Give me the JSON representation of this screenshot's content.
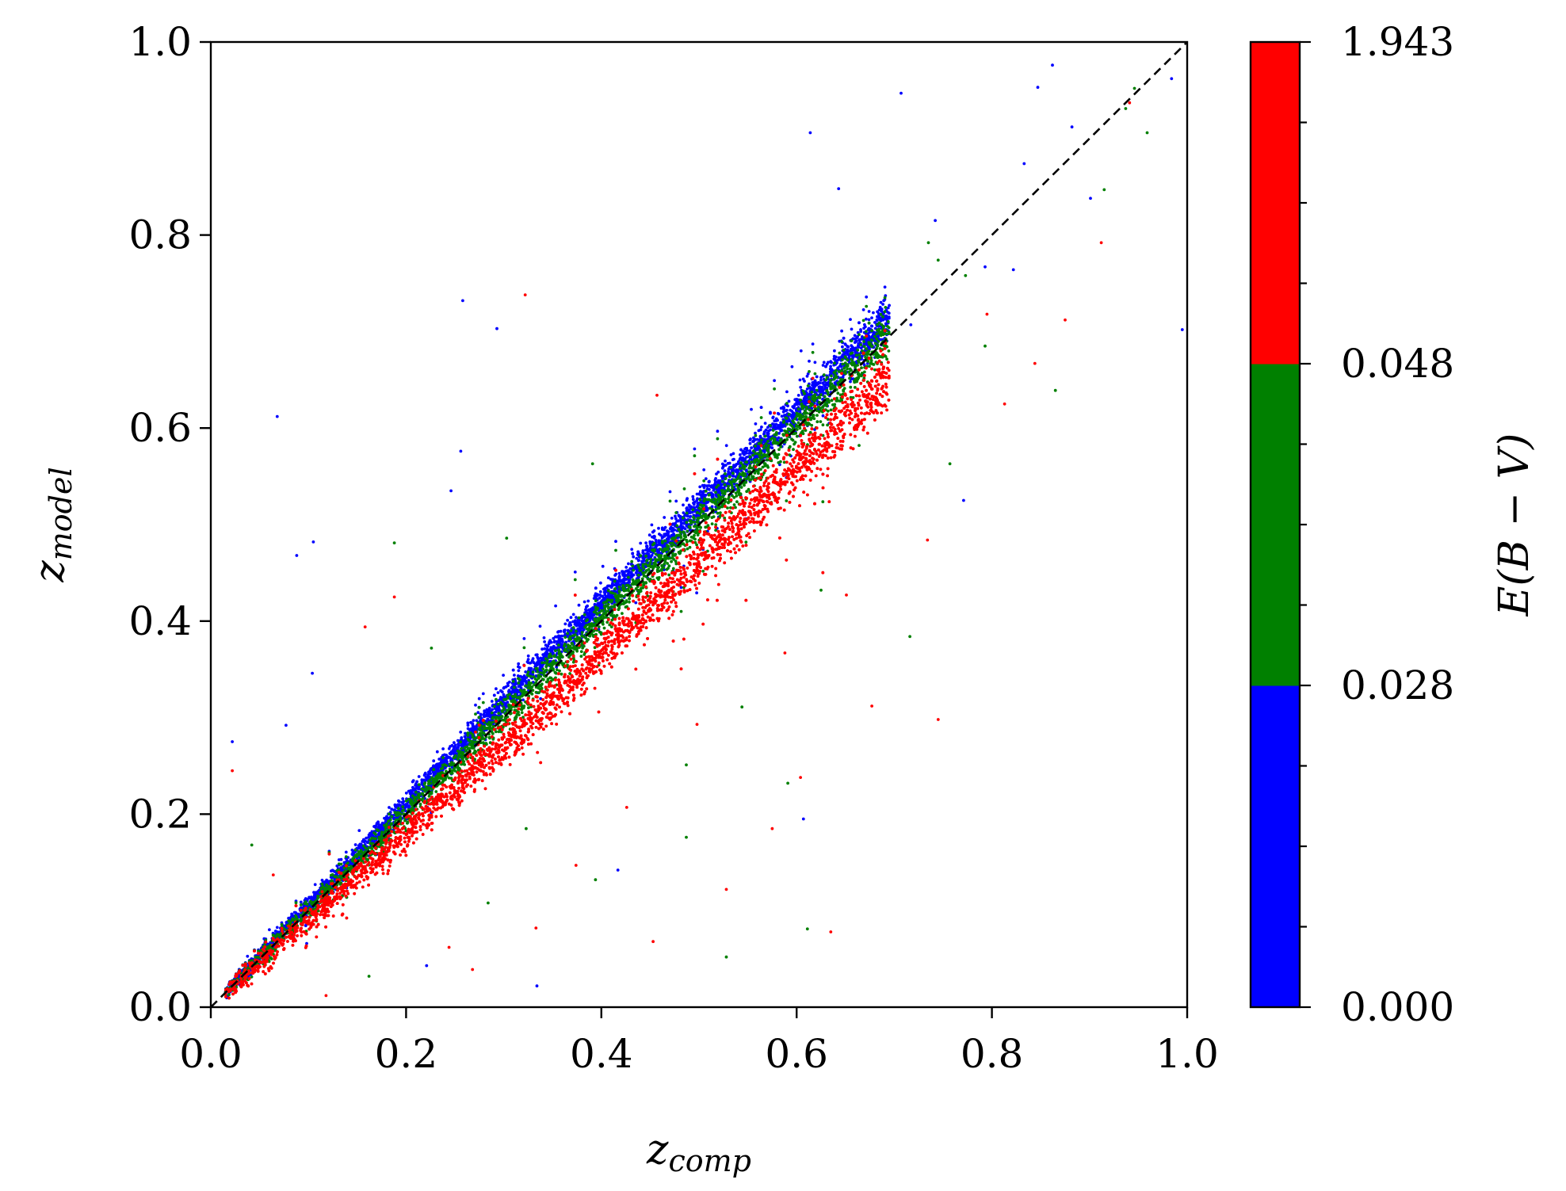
{
  "chart_data": {
    "type": "scatter",
    "xlabel_main": "z",
    "xlabel_sub": "comp",
    "ylabel_main": "z",
    "ylabel_sub": "model",
    "xlim": [
      0.0,
      1.0
    ],
    "ylim": [
      0.0,
      1.0
    ],
    "x_ticks": [
      "0.0",
      "0.2",
      "0.4",
      "0.6",
      "0.8",
      "1.0"
    ],
    "y_ticks": [
      "0.0",
      "0.2",
      "0.4",
      "0.6",
      "0.8",
      "1.0"
    ],
    "grid": false,
    "reference_line": {
      "style": "dashed",
      "color": "#000000",
      "from": [
        0.0,
        0.0
      ],
      "to": [
        1.0,
        1.0
      ]
    },
    "colorbar": {
      "label": "E(B − V)",
      "tick_labels": [
        "0.000",
        "0.028",
        "0.048",
        "1.943"
      ],
      "bins": [
        {
          "from": "0.000",
          "to": "0.028",
          "color": "#0000ff"
        },
        {
          "from": "0.028",
          "to": "0.048",
          "color": "#008000"
        },
        {
          "from": "0.048",
          "to": "1.943",
          "color": "#ff0000"
        }
      ]
    },
    "series": [
      {
        "color": "#0000ff",
        "bin": "0.000 - 0.028",
        "trend": {
          "slope": 1.0,
          "intercept": 0.018,
          "scatter": 0.022
        },
        "points": [
          [
            0.068,
            0.612
          ],
          [
            0.088,
            0.468
          ],
          [
            0.105,
            0.482
          ],
          [
            0.258,
            0.732
          ],
          [
            0.293,
            0.703
          ],
          [
            0.614,
            0.906
          ],
          [
            0.707,
            0.947
          ],
          [
            0.643,
            0.848
          ],
          [
            0.995,
            0.702
          ],
          [
            0.984,
            0.962
          ],
          [
            0.862,
            0.976
          ],
          [
            0.847,
            0.953
          ],
          [
            0.882,
            0.912
          ],
          [
            0.771,
            0.525
          ],
          [
            0.246,
            0.535
          ],
          [
            0.256,
            0.576
          ],
          [
            0.104,
            0.346
          ],
          [
            0.022,
            0.275
          ],
          [
            0.077,
            0.292
          ],
          [
            0.793,
            0.767
          ],
          [
            0.742,
            0.815
          ],
          [
            0.822,
            0.764
          ],
          [
            0.901,
            0.838
          ],
          [
            0.833,
            0.874
          ],
          [
            0.717,
            0.707
          ],
          [
            0.607,
            0.195
          ],
          [
            0.417,
            0.142
          ],
          [
            0.221,
            0.043
          ],
          [
            0.334,
            0.022
          ],
          [
            0.111,
            0.117
          ]
        ]
      },
      {
        "color": "#008000",
        "bin": "0.028 - 0.048",
        "trend": {
          "slope": 1.0,
          "intercept": 0.002,
          "scatter": 0.025
        },
        "points": [
          [
            0.959,
            0.906
          ],
          [
            0.937,
            0.931
          ],
          [
            0.915,
            0.847
          ],
          [
            0.865,
            0.639
          ],
          [
            0.793,
            0.685
          ],
          [
            0.716,
            0.384
          ],
          [
            0.625,
            0.432
          ],
          [
            0.574,
            0.523
          ],
          [
            0.485,
            0.537
          ],
          [
            0.391,
            0.563
          ],
          [
            0.303,
            0.486
          ],
          [
            0.226,
            0.372
          ],
          [
            0.188,
            0.481
          ],
          [
            0.042,
            0.168
          ],
          [
            0.487,
            0.176
          ],
          [
            0.591,
            0.232
          ],
          [
            0.487,
            0.251
          ],
          [
            0.323,
            0.185
          ],
          [
            0.284,
            0.108
          ],
          [
            0.162,
            0.032
          ],
          [
            0.528,
            0.052
          ],
          [
            0.394,
            0.132
          ],
          [
            0.611,
            0.081
          ],
          [
            0.544,
            0.311
          ],
          [
            0.757,
            0.563
          ],
          [
            0.664,
            0.582
          ],
          [
            0.745,
            0.774
          ],
          [
            0.946,
            0.952
          ],
          [
            0.773,
            0.758
          ],
          [
            0.735,
            0.792
          ]
        ]
      },
      {
        "color": "#ff0000",
        "bin": "0.048 - 1.943",
        "trend": {
          "slope": 0.965,
          "intercept": -0.02,
          "scatter": 0.032
        },
        "points": [
          [
            0.322,
            0.738
          ],
          [
            0.912,
            0.792
          ],
          [
            0.941,
            0.937
          ],
          [
            0.745,
            0.298
          ],
          [
            0.635,
            0.078
          ],
          [
            0.575,
            0.185
          ],
          [
            0.604,
            0.238
          ],
          [
            0.528,
            0.122
          ],
          [
            0.453,
            0.068
          ],
          [
            0.333,
            0.082
          ],
          [
            0.268,
            0.039
          ],
          [
            0.188,
            0.425
          ],
          [
            0.158,
            0.394
          ],
          [
            0.022,
            0.245
          ],
          [
            0.457,
            0.634
          ],
          [
            0.564,
            0.525
          ],
          [
            0.677,
            0.312
          ],
          [
            0.734,
            0.484
          ],
          [
            0.795,
            0.718
          ],
          [
            0.813,
            0.625
          ],
          [
            0.844,
            0.667
          ],
          [
            0.875,
            0.712
          ],
          [
            0.651,
            0.427
          ],
          [
            0.588,
            0.367
          ],
          [
            0.498,
            0.293
          ],
          [
            0.426,
            0.207
          ],
          [
            0.374,
            0.147
          ],
          [
            0.244,
            0.062
          ],
          [
            0.118,
            0.012
          ],
          [
            0.064,
            0.137
          ]
        ]
      }
    ]
  }
}
